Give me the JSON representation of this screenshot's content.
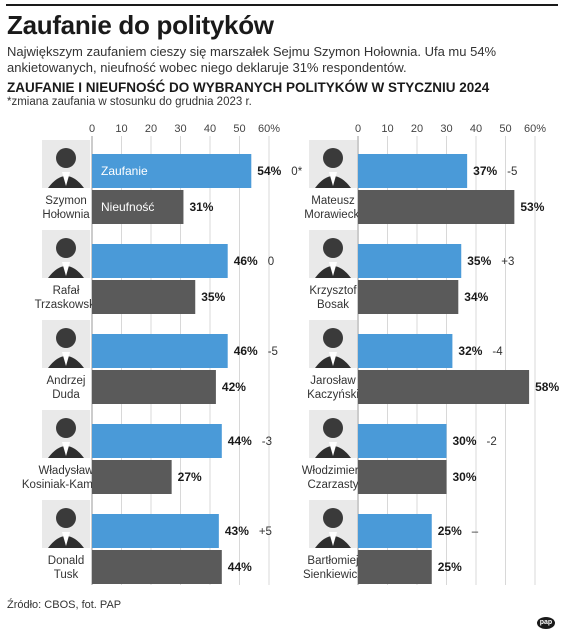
{
  "header": {
    "title": "Zaufanie do polityków",
    "subtitle": "Największym zaufaniem cieszy się marszałek Sejmu Szymon Hołownia. Ufa mu 54% ankietowanych, nieufność wobec niego deklaruje 31% respondentów.",
    "section_title": "ZAUFANIE I NIEUFNOŚĆ DO WYBRANYCH POLITYKÓW W STYCZNIU 2024",
    "note": "*zmiana zaufania w stosunku do grudnia 2023 r."
  },
  "footer": {
    "source": "Źródło: CBOS, fot. PAP",
    "logo": "pap"
  },
  "colors": {
    "trust": "#4a9ad8",
    "distrust": "#5a5a5a",
    "grid": "#d8d8d8",
    "photo_bg": "#e9e9e9"
  },
  "chart_data": {
    "type": "bar",
    "orientation": "horizontal",
    "x_ticks": [
      "0",
      "10",
      "20",
      "30",
      "40",
      "50",
      "60%"
    ],
    "xlim": [
      0,
      60
    ],
    "series_labels": [
      "Zaufanie",
      "Nieufność"
    ],
    "panels": [
      {
        "politicians": [
          {
            "name_line1": "Szymon",
            "name_line2": "Hołownia",
            "trust": 54,
            "trust_label": "54%",
            "distrust": 31,
            "distrust_label": "31%",
            "change": "0*"
          },
          {
            "name_line1": "Rafał",
            "name_line2": "Trzaskowski",
            "trust": 46,
            "trust_label": "46%",
            "distrust": 35,
            "distrust_label": "35%",
            "change": "0"
          },
          {
            "name_line1": "Andrzej",
            "name_line2": "Duda",
            "trust": 46,
            "trust_label": "46%",
            "distrust": 42,
            "distrust_label": "42%",
            "change": "-5"
          },
          {
            "name_line1": "Władysław",
            "name_line2": "Kosiniak-Kamysz",
            "trust": 44,
            "trust_label": "44%",
            "distrust": 27,
            "distrust_label": "27%",
            "change": "-3"
          },
          {
            "name_line1": "Donald",
            "name_line2": "Tusk",
            "trust": 43,
            "trust_label": "43%",
            "distrust": 44,
            "distrust_label": "44%",
            "change": "+5"
          }
        ]
      },
      {
        "politicians": [
          {
            "name_line1": "Mateusz",
            "name_line2": "Morawiecki",
            "trust": 37,
            "trust_label": "37%",
            "distrust": 53,
            "distrust_label": "53%",
            "change": "-5"
          },
          {
            "name_line1": "Krzysztof",
            "name_line2": "Bosak",
            "trust": 35,
            "trust_label": "35%",
            "distrust": 34,
            "distrust_label": "34%",
            "change": "+3"
          },
          {
            "name_line1": "Jarosław",
            "name_line2": "Kaczyński",
            "trust": 32,
            "trust_label": "32%",
            "distrust": 58,
            "distrust_label": "58%",
            "change": "-4"
          },
          {
            "name_line1": "Włodzimierz",
            "name_line2": "Czarzasty",
            "trust": 30,
            "trust_label": "30%",
            "distrust": 30,
            "distrust_label": "30%",
            "change": "-2"
          },
          {
            "name_line1": "Bartłomiej",
            "name_line2": "Sienkiewicz",
            "trust": 25,
            "trust_label": "25%",
            "distrust": 25,
            "distrust_label": "25%",
            "change": "–"
          }
        ]
      }
    ]
  }
}
